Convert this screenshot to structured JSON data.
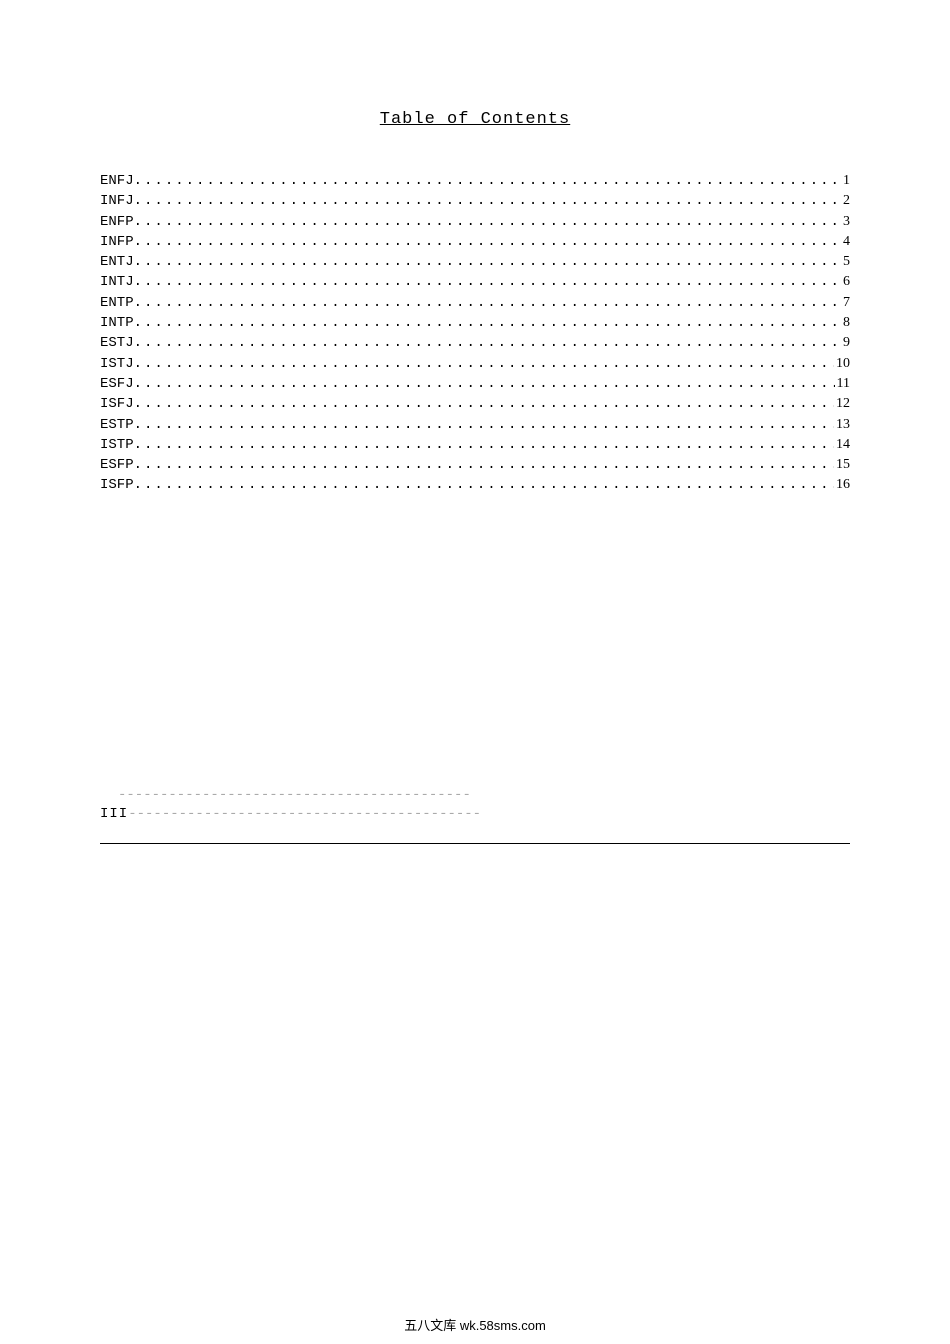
{
  "title": "Table of Contents",
  "toc": [
    {
      "label": "ENFJ",
      "page": "1"
    },
    {
      "label": "INFJ",
      "page": "2"
    },
    {
      "label": "ENFP",
      "page": "3"
    },
    {
      "label": "INFP",
      "page": "4"
    },
    {
      "label": "ENTJ",
      "page": "5"
    },
    {
      "label": "INTJ",
      "page": "6"
    },
    {
      "label": "ENTP",
      "page": "7"
    },
    {
      "label": "INTP",
      "page": "8"
    },
    {
      "label": "ESTJ",
      "page": "9"
    },
    {
      "label": "ISTJ",
      "page": "10"
    },
    {
      "label": "ESFJ",
      "page": "11"
    },
    {
      "label": "ISFJ",
      "page": "12"
    },
    {
      "label": "ESTP",
      "page": "13"
    },
    {
      "label": "ISTP",
      "page": "14"
    },
    {
      "label": "ESFP",
      "page": "15"
    },
    {
      "label": "ISFP",
      "page": "16"
    }
  ],
  "separator": {
    "top_line": "------------------------------------------",
    "roman": "III",
    "mid_dashes": "------------------------------------------"
  },
  "footer": "五八文库 wk.58sms.com",
  "colors": {
    "background": "#ffffff",
    "text": "#000000",
    "sep_dash": "#aaaaaa"
  },
  "typography": {
    "title_fontsize": 17,
    "body_fontsize": 14,
    "footer_fontsize": 13,
    "font_mono": "Courier New",
    "font_cjk": "SimSun"
  }
}
